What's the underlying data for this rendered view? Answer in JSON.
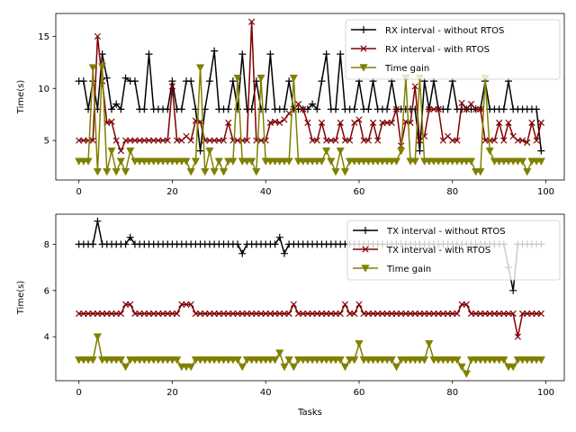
{
  "chart_data": [
    {
      "type": "line",
      "xlabel": "",
      "ylabel": "Time(s)",
      "xlim": [
        -4.95,
        103.95
      ],
      "ylim": [
        1.2,
        17.2
      ],
      "xticks": [
        0,
        20,
        40,
        60,
        80,
        100
      ],
      "yticks": [
        5,
        10,
        15
      ],
      "legend_placement": "upper right",
      "series": [
        {
          "name": "RX interval - without RTOS",
          "color": "#000000",
          "marker": "+",
          "values": [
            10.7,
            10.7,
            8.0,
            10.7,
            8.0,
            13.3,
            11.0,
            8.0,
            8.5,
            8.0,
            11.0,
            10.7,
            10.7,
            8.0,
            8.0,
            13.3,
            8.0,
            8.0,
            8.0,
            8.0,
            10.7,
            8.0,
            8.0,
            10.7,
            10.7,
            8.0,
            4.0,
            8.0,
            10.7,
            13.6,
            8.0,
            8.0,
            8.0,
            10.7,
            8.0,
            13.3,
            8.0,
            8.0,
            10.7,
            8.0,
            8.0,
            13.3,
            8.0,
            8.0,
            8.0,
            10.7,
            8.0,
            8.0,
            8.0,
            8.0,
            8.5,
            8.0,
            10.7,
            13.3,
            8.0,
            8.0,
            13.3,
            8.0,
            8.0,
            8.0,
            10.7,
            8.0,
            8.0,
            10.7,
            8.0,
            8.0,
            8.0,
            10.7,
            8.0,
            8.0,
            8.0,
            8.0,
            8.0,
            4.0,
            10.7,
            8.0,
            10.7,
            8.0,
            8.0,
            8.0,
            10.7,
            8.0,
            8.0,
            8.0,
            8.0,
            8.0,
            8.0,
            10.7,
            8.0,
            8.0,
            8.0,
            8.0,
            10.7,
            8.0,
            8.0,
            8.0,
            8.0,
            8.0,
            8.0,
            4.0
          ],
          "values_note": ""
        },
        {
          "name": "RX interval - with RTOS",
          "color": "#800000",
          "marker": "x",
          "values": [
            5.0,
            5.0,
            5.0,
            5.0,
            15.0,
            10.7,
            6.7,
            6.8,
            5.0,
            4.0,
            5.0,
            5.0,
            5.0,
            5.0,
            5.0,
            5.0,
            5.0,
            5.0,
            5.0,
            5.0,
            10.2,
            5.0,
            5.0,
            5.4,
            5.0,
            6.9,
            6.8,
            5.0,
            5.0,
            5.0,
            5.0,
            5.0,
            6.7,
            5.0,
            5.0,
            5.0,
            5.0,
            16.4,
            5.0,
            5.0,
            5.0,
            6.7,
            6.8,
            6.7,
            7.0,
            7.6,
            8.0,
            8.5,
            8.0,
            6.7,
            5.0,
            5.0,
            6.7,
            5.0,
            5.0,
            5.0,
            6.7,
            5.0,
            5.0,
            6.7,
            7.0,
            5.0,
            5.0,
            6.7,
            5.0,
            6.7,
            6.7,
            6.7,
            8.0,
            4.5,
            6.8,
            6.7,
            10.2,
            5.0,
            5.4,
            8.0,
            8.0,
            8.0,
            5.0,
            5.4,
            5.0,
            5.0,
            8.6,
            8.0,
            8.5,
            8.0,
            8.0,
            5.0,
            5.0,
            5.0,
            6.7,
            5.0,
            6.7,
            5.4,
            5.0,
            5.0,
            4.8,
            6.7,
            5.0,
            6.7
          ],
          "values_note": ""
        },
        {
          "name": "Time gain",
          "color": "#808000",
          "marker": "v",
          "values": [
            3.0,
            3.0,
            3.0,
            12.0,
            2.0,
            12.1,
            2.0,
            4.0,
            2.0,
            3.0,
            2.0,
            4.0,
            3.0,
            3.0,
            3.0,
            3.0,
            3.0,
            3.0,
            3.0,
            3.0,
            3.0,
            3.0,
            3.0,
            3.0,
            2.0,
            3.0,
            12.0,
            2.0,
            4.0,
            2.0,
            3.0,
            2.0,
            3.0,
            3.0,
            11.0,
            3.0,
            3.0,
            3.0,
            2.0,
            11.0,
            3.0,
            3.0,
            3.0,
            3.0,
            3.0,
            3.0,
            11.0,
            3.0,
            3.0,
            3.0,
            3.0,
            3.0,
            3.0,
            4.0,
            3.0,
            2.0,
            4.0,
            2.0,
            3.0,
            3.0,
            3.0,
            3.0,
            3.0,
            3.0,
            3.0,
            3.0,
            3.0,
            3.0,
            3.0,
            4.0,
            11.0,
            3.0,
            3.0,
            11.0,
            3.0,
            3.0,
            3.0,
            3.0,
            3.0,
            3.0,
            3.0,
            3.0,
            3.0,
            3.0,
            3.0,
            2.0,
            2.0,
            11.0,
            4.0,
            3.0,
            3.0,
            3.0,
            3.0,
            3.0,
            3.0,
            3.0,
            2.0,
            3.0,
            3.0,
            3.0
          ],
          "values_note": ""
        }
      ]
    },
    {
      "type": "line",
      "xlabel": "Tasks",
      "ylabel": "Time(s)",
      "xlim": [
        -4.95,
        103.95
      ],
      "ylim": [
        2.1,
        9.3
      ],
      "xticks": [
        0,
        20,
        40,
        60,
        80,
        100
      ],
      "yticks": [
        4,
        6,
        8
      ],
      "legend_placement": "upper right",
      "series": [
        {
          "name": "TX interval - without RTOS",
          "color": "#000000",
          "marker": "+",
          "values": [
            8.0,
            8.0,
            8.0,
            8.0,
            9.0,
            8.0,
            8.0,
            8.0,
            8.0,
            8.0,
            8.0,
            8.3,
            8.0,
            8.0,
            8.0,
            8.0,
            8.0,
            8.0,
            8.0,
            8.0,
            8.0,
            8.0,
            8.0,
            8.0,
            8.0,
            8.0,
            8.0,
            8.0,
            8.0,
            8.0,
            8.0,
            8.0,
            8.0,
            8.0,
            8.0,
            7.6,
            8.0,
            8.0,
            8.0,
            8.0,
            8.0,
            8.0,
            8.0,
            8.3,
            7.6,
            8.0,
            8.0,
            8.0,
            8.0,
            8.0,
            8.0,
            8.0,
            8.0,
            8.0,
            8.0,
            8.0,
            8.0,
            8.0,
            8.0,
            8.0,
            8.0,
            8.0,
            8.0,
            8.0,
            8.0,
            8.0,
            8.0,
            8.0,
            8.0,
            8.0,
            8.0,
            8.0,
            8.0,
            8.0,
            8.0,
            8.0,
            8.0,
            8.0,
            8.0,
            8.0,
            8.0,
            8.0,
            8.0,
            8.0,
            8.0,
            8.0,
            8.0,
            8.0,
            8.0,
            8.0,
            8.0,
            8.0,
            7.0,
            6.0,
            8.0,
            8.0,
            8.0,
            8.0,
            8.0,
            8.0
          ]
        },
        {
          "name": "TX interval - with RTOS",
          "color": "#800000",
          "marker": "x",
          "values": [
            5.0,
            5.0,
            5.0,
            5.0,
            5.0,
            5.0,
            5.0,
            5.0,
            5.0,
            5.0,
            5.4,
            5.4,
            5.0,
            5.0,
            5.0,
            5.0,
            5.0,
            5.0,
            5.0,
            5.0,
            5.0,
            5.0,
            5.4,
            5.4,
            5.4,
            5.0,
            5.0,
            5.0,
            5.0,
            5.0,
            5.0,
            5.0,
            5.0,
            5.0,
            5.0,
            5.0,
            5.0,
            5.0,
            5.0,
            5.0,
            5.0,
            5.0,
            5.0,
            5.0,
            5.0,
            5.0,
            5.4,
            5.0,
            5.0,
            5.0,
            5.0,
            5.0,
            5.0,
            5.0,
            5.0,
            5.0,
            5.0,
            5.4,
            5.0,
            5.0,
            5.4,
            5.0,
            5.0,
            5.0,
            5.0,
            5.0,
            5.0,
            5.0,
            5.0,
            5.0,
            5.0,
            5.0,
            5.0,
            5.0,
            5.0,
            5.0,
            5.0,
            5.0,
            5.0,
            5.0,
            5.0,
            5.0,
            5.4,
            5.4,
            5.0,
            5.0,
            5.0,
            5.0,
            5.0,
            5.0,
            5.0,
            5.0,
            5.0,
            5.0,
            4.0,
            5.0,
            5.0,
            5.0,
            5.0,
            5.0
          ]
        },
        {
          "name": "Time gain",
          "color": "#808000",
          "marker": "v",
          "values": [
            3.0,
            3.0,
            3.0,
            3.0,
            4.0,
            3.0,
            3.0,
            3.0,
            3.0,
            3.0,
            2.7,
            3.0,
            3.0,
            3.0,
            3.0,
            3.0,
            3.0,
            3.0,
            3.0,
            3.0,
            3.0,
            3.0,
            2.7,
            2.7,
            2.7,
            3.0,
            3.0,
            3.0,
            3.0,
            3.0,
            3.0,
            3.0,
            3.0,
            3.0,
            3.0,
            2.7,
            3.0,
            3.0,
            3.0,
            3.0,
            3.0,
            3.0,
            3.0,
            3.3,
            2.7,
            3.0,
            2.7,
            3.0,
            3.0,
            3.0,
            3.0,
            3.0,
            3.0,
            3.0,
            3.0,
            3.0,
            3.0,
            2.7,
            3.0,
            3.0,
            3.7,
            3.0,
            3.0,
            3.0,
            3.0,
            3.0,
            3.0,
            3.0,
            2.7,
            3.0,
            3.0,
            3.0,
            3.0,
            3.0,
            3.0,
            3.7,
            3.0,
            3.0,
            3.0,
            3.0,
            3.0,
            3.0,
            2.7,
            2.4,
            3.0,
            3.0,
            3.0,
            3.0,
            3.0,
            3.0,
            3.0,
            3.0,
            2.7,
            2.7,
            3.0,
            3.0,
            3.0,
            3.0,
            3.0,
            3.0
          ]
        }
      ]
    }
  ]
}
